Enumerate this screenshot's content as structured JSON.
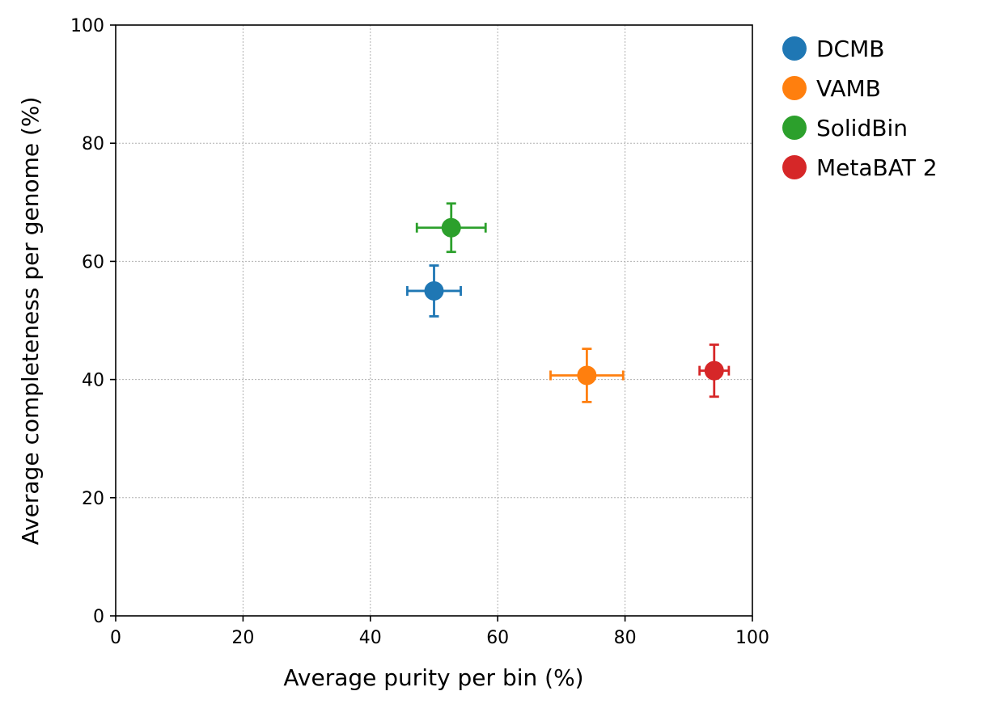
{
  "chart_data": {
    "type": "scatter",
    "title": "",
    "xlabel": "Average purity per bin (%)",
    "ylabel": "Average completeness per genome (%)",
    "xlim": [
      0,
      100
    ],
    "ylim": [
      0,
      100
    ],
    "xticks": [
      0,
      20,
      40,
      60,
      80,
      100
    ],
    "yticks": [
      0,
      20,
      40,
      60,
      80,
      100
    ],
    "grid": true,
    "legend_position": "outside-top-right",
    "series": [
      {
        "name": "DCMB",
        "color": "#1f77b4",
        "x": 50.0,
        "y": 55.0,
        "x_err": 4.2,
        "y_err": 4.3
      },
      {
        "name": "VAMB",
        "color": "#ff7f0e",
        "x": 74.0,
        "y": 40.7,
        "x_err": 5.7,
        "y_err": 4.5
      },
      {
        "name": "SolidBin",
        "color": "#2ca02c",
        "x": 52.7,
        "y": 65.7,
        "x_err": 5.4,
        "y_err": 4.1
      },
      {
        "name": "MetaBAT 2",
        "color": "#d62728",
        "x": 94.0,
        "y": 41.5,
        "x_err": 2.3,
        "y_err": 4.4
      }
    ]
  }
}
